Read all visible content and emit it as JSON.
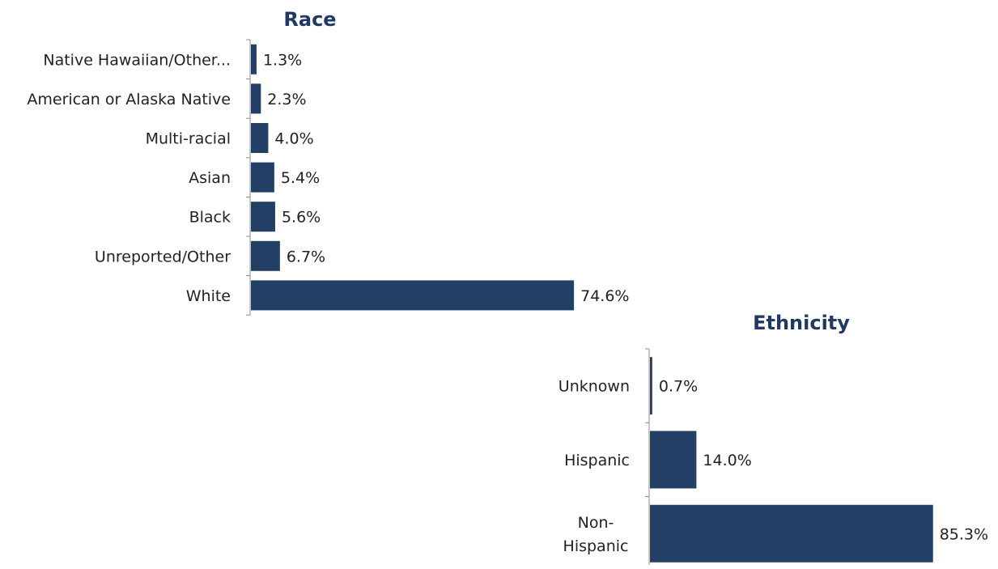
{
  "chart_data": [
    {
      "type": "bar",
      "orientation": "horizontal",
      "title": "Race",
      "categories": [
        "Native Hawaiian/Other...",
        "American or Alaska Native",
        "Multi-racial",
        "Asian",
        "Black",
        "Unreported/Other",
        "White"
      ],
      "values": [
        1.3,
        2.3,
        4.0,
        5.4,
        5.6,
        6.7,
        74.6
      ],
      "value_labels": [
        "1.3%",
        "2.3%",
        "4.0%",
        "5.4%",
        "5.6%",
        "6.7%",
        "74.6%"
      ],
      "xlim": [
        0,
        100
      ],
      "grid": false,
      "legend": "none",
      "bar_color": "#243f66"
    },
    {
      "type": "bar",
      "orientation": "horizontal",
      "title": "Ethnicity",
      "categories": [
        "Unknown",
        "Hispanic",
        "Non-Hispanic"
      ],
      "category_lines": [
        [
          "Unknown"
        ],
        [
          "Hispanic"
        ],
        [
          "Non-",
          "Hispanic"
        ]
      ],
      "values": [
        0.7,
        14.0,
        85.3
      ],
      "value_labels": [
        "0.7%",
        "14.0%",
        "85.3%"
      ],
      "xlim": [
        0,
        100
      ],
      "grid": false,
      "legend": "none",
      "bar_color": "#243f66"
    }
  ]
}
